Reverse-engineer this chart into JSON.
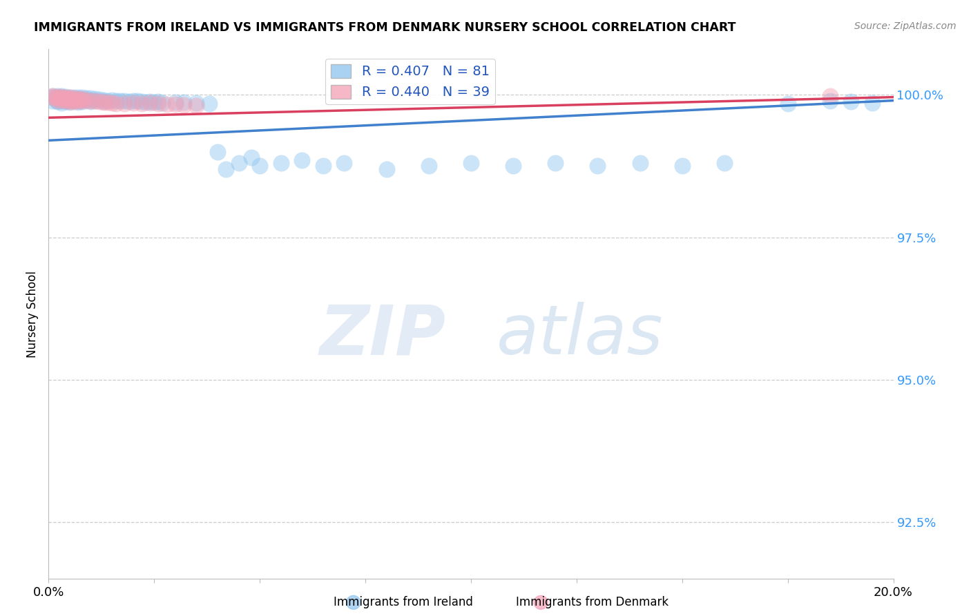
{
  "title": "IMMIGRANTS FROM IRELAND VS IMMIGRANTS FROM DENMARK NURSERY SCHOOL CORRELATION CHART",
  "source": "Source: ZipAtlas.com",
  "ylabel": "Nursery School",
  "xlim": [
    0.0,
    0.2
  ],
  "ylim": [
    0.915,
    1.008
  ],
  "xticks": [
    0.0,
    0.025,
    0.05,
    0.075,
    0.1,
    0.125,
    0.15,
    0.175,
    0.2
  ],
  "xticklabels": [
    "0.0%",
    "",
    "",
    "",
    "",
    "",
    "",
    "",
    "20.0%"
  ],
  "yticks": [
    0.925,
    0.95,
    0.975,
    1.0
  ],
  "yticklabels": [
    "92.5%",
    "95.0%",
    "97.5%",
    "100.0%"
  ],
  "ireland_color": "#8DC4EE",
  "denmark_color": "#F4A0B5",
  "ireland_line_color": "#4080CC",
  "denmark_line_color": "#D94060",
  "ireland_R": 0.407,
  "ireland_N": 81,
  "denmark_R": 0.44,
  "denmark_N": 39,
  "watermark_zip": "ZIP",
  "watermark_atlas": "atlas",
  "background_color": "#ffffff",
  "grid_color": "#cccccc",
  "ireland_x": [
    0.001,
    0.001,
    0.001,
    0.002,
    0.002,
    0.002,
    0.002,
    0.002,
    0.003,
    0.003,
    0.003,
    0.003,
    0.003,
    0.004,
    0.004,
    0.004,
    0.004,
    0.005,
    0.005,
    0.005,
    0.005,
    0.006,
    0.006,
    0.006,
    0.007,
    0.007,
    0.007,
    0.007,
    0.008,
    0.008,
    0.008,
    0.009,
    0.009,
    0.01,
    0.01,
    0.01,
    0.011,
    0.011,
    0.012,
    0.013,
    0.013,
    0.014,
    0.015,
    0.016,
    0.017,
    0.018,
    0.019,
    0.02,
    0.021,
    0.022,
    0.023,
    0.024,
    0.025,
    0.026,
    0.027,
    0.03,
    0.032,
    0.035,
    0.038,
    0.04,
    0.042,
    0.045,
    0.048,
    0.05,
    0.055,
    0.06,
    0.065,
    0.07,
    0.08,
    0.09,
    0.1,
    0.11,
    0.12,
    0.13,
    0.14,
    0.15,
    0.16,
    0.175,
    0.185,
    0.19,
    0.195
  ],
  "ireland_y": [
    0.9998,
    0.9995,
    0.999,
    0.9998,
    0.9996,
    0.9993,
    0.999,
    0.9988,
    0.9998,
    0.9995,
    0.9992,
    0.9989,
    0.9986,
    0.9997,
    0.9994,
    0.9991,
    0.9988,
    0.9996,
    0.9993,
    0.999,
    0.9987,
    0.9995,
    0.9992,
    0.9989,
    0.9996,
    0.9993,
    0.999,
    0.9987,
    0.9995,
    0.9992,
    0.9988,
    0.9994,
    0.9991,
    0.9994,
    0.9991,
    0.9988,
    0.9993,
    0.999,
    0.9992,
    0.9991,
    0.9988,
    0.999,
    0.9991,
    0.999,
    0.9989,
    0.999,
    0.9988,
    0.9989,
    0.999,
    0.9988,
    0.9987,
    0.9988,
    0.9987,
    0.9988,
    0.9986,
    0.9987,
    0.9987,
    0.9986,
    0.9985,
    0.99,
    0.987,
    0.988,
    0.989,
    0.9875,
    0.988,
    0.9885,
    0.9875,
    0.988,
    0.987,
    0.9875,
    0.988,
    0.9875,
    0.988,
    0.9875,
    0.988,
    0.9875,
    0.988,
    0.9985,
    0.999,
    0.9988,
    0.9986
  ],
  "denmark_x": [
    0.001,
    0.001,
    0.002,
    0.002,
    0.002,
    0.003,
    0.003,
    0.003,
    0.004,
    0.004,
    0.004,
    0.005,
    0.005,
    0.005,
    0.006,
    0.006,
    0.006,
    0.007,
    0.007,
    0.008,
    0.008,
    0.009,
    0.01,
    0.011,
    0.012,
    0.013,
    0.014,
    0.015,
    0.016,
    0.018,
    0.02,
    0.022,
    0.024,
    0.026,
    0.028,
    0.03,
    0.032,
    0.035,
    0.185
  ],
  "denmark_y": [
    0.9998,
    0.9995,
    0.9997,
    0.9994,
    0.9991,
    0.9997,
    0.9994,
    0.9991,
    0.9996,
    0.9993,
    0.9989,
    0.9995,
    0.9992,
    0.9988,
    0.9994,
    0.9991,
    0.9988,
    0.9993,
    0.999,
    0.9993,
    0.9989,
    0.9991,
    0.999,
    0.9989,
    0.9988,
    0.9987,
    0.9987,
    0.9986,
    0.9985,
    0.9985,
    0.9986,
    0.9985,
    0.9986,
    0.9985,
    0.9984,
    0.9983,
    0.9982,
    0.9981,
    0.9998
  ]
}
